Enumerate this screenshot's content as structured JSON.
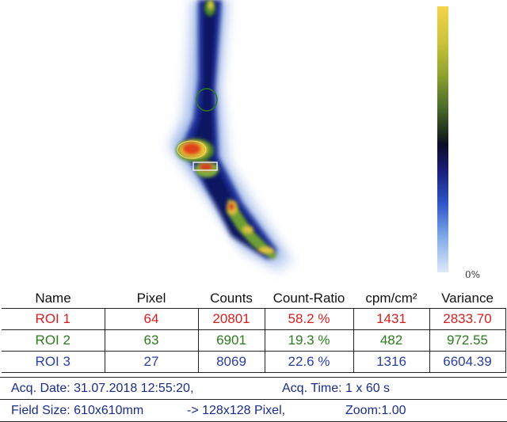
{
  "scale_label": "0%",
  "table": {
    "headers": [
      "Name",
      "Pixel",
      "Counts",
      "Count-Ratio",
      "cpm/cm²",
      "Variance"
    ],
    "rows": [
      {
        "name": "ROI  1",
        "pixel": "64",
        "counts": "20801",
        "ratio": "58.2 %",
        "cpm": "1431",
        "variance": "2833.70",
        "color": "#d42020"
      },
      {
        "name": "ROI  2",
        "pixel": "63",
        "counts": "6901",
        "ratio": "19.3 %",
        "cpm": "482",
        "variance": "972.55",
        "color": "#2b7a1c"
      },
      {
        "name": "ROI  3",
        "pixel": "27",
        "counts": "8069",
        "ratio": "22.6 %",
        "cpm": "1316",
        "variance": "6604.39",
        "color": "#2b3ea0"
      }
    ]
  },
  "info": {
    "acq_date_label": "Acq. Date: 31.07.2018  12:55:20,",
    "acq_time_label": "Acq. Time: 1 x 60 s",
    "field_size_label": "Field Size:  610x610mm",
    "pixel_label": "-> 128x128 Pixel,",
    "zoom_label": "Zoom:1.00"
  },
  "colors": {
    "roi1": "#d42020",
    "roi2": "#2b7a1c",
    "roi3": "#2b3ea0",
    "info_text": "#1a2c8a",
    "colorbar_top": "#f3d44a",
    "colorbar_mid": "#0d0d28",
    "colorbar_bottom": "#dfe9fa"
  }
}
